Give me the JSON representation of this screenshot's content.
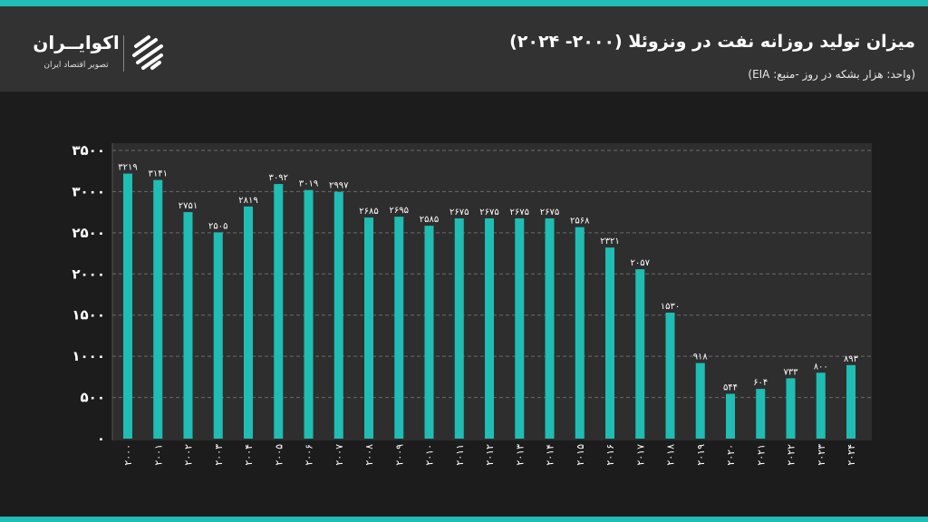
{
  "header": {
    "title": "میزان تولید روزانه نفت در ونزوئلا (۲۰۰۰- ۲۰۲۴)",
    "subtitle": "(واحد: هزار بشکه در روز -منبع: EIA)"
  },
  "logo": {
    "name": "اکوایــران",
    "tagline": "تصویر اقتصاد ایران"
  },
  "colors": {
    "bar": "#1fbdb3",
    "plot_bg": "#2f2e2e",
    "grid": "#6a6a6a"
  },
  "chart_data": {
    "type": "bar",
    "title": "میزان تولید روزانه نفت در ونزوئلا (۲۰۰۰- ۲۰۲۴)",
    "ylabel": "هزار بشکه در روز",
    "categories": [
      "2000",
      "2001",
      "2002",
      "2003",
      "2004",
      "2005",
      "2006",
      "2007",
      "2008",
      "2009",
      "2010",
      "2011",
      "2012",
      "2013",
      "2014",
      "2015",
      "2016",
      "2017",
      "2018",
      "2019",
      "2020",
      "2021",
      "2022",
      "2023",
      "2024"
    ],
    "values": [
      3219,
      3141,
      2751,
      2505,
      2819,
      3092,
      3019,
      2997,
      2685,
      2695,
      2585,
      2675,
      2675,
      2675,
      2675,
      2568,
      2321,
      2057,
      1530,
      918,
      544,
      604,
      733,
      800,
      893
    ],
    "yticks": [
      0,
      500,
      1000,
      1500,
      2000,
      2500,
      3000,
      3500
    ],
    "ylim": [
      0,
      3500
    ],
    "grid": true,
    "data_labels": true
  }
}
